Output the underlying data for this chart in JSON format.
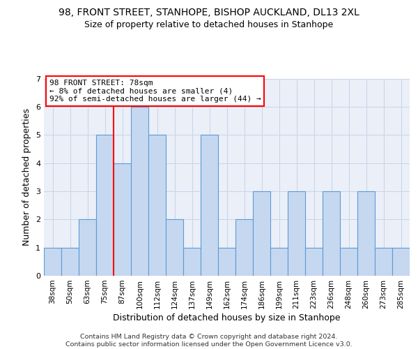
{
  "title_line1": "98, FRONT STREET, STANHOPE, BISHOP AUCKLAND, DL13 2XL",
  "title_line2": "Size of property relative to detached houses in Stanhope",
  "xlabel": "Distribution of detached houses by size in Stanhope",
  "ylabel": "Number of detached properties",
  "categories": [
    "38sqm",
    "50sqm",
    "63sqm",
    "75sqm",
    "87sqm",
    "100sqm",
    "112sqm",
    "124sqm",
    "137sqm",
    "149sqm",
    "162sqm",
    "174sqm",
    "186sqm",
    "199sqm",
    "211sqm",
    "223sqm",
    "236sqm",
    "248sqm",
    "260sqm",
    "273sqm",
    "285sqm"
  ],
  "values": [
    1,
    1,
    2,
    5,
    4,
    6,
    5,
    2,
    1,
    5,
    1,
    2,
    3,
    1,
    3,
    1,
    3,
    1,
    3,
    1,
    1
  ],
  "bar_color": "#c5d8f0",
  "bar_edge_color": "#5b9bd5",
  "vline_x": 3.5,
  "vline_color": "red",
  "annotation_text": "98 FRONT STREET: 78sqm\n← 8% of detached houses are smaller (4)\n92% of semi-detached houses are larger (44) →",
  "ylim": [
    0,
    7
  ],
  "yticks": [
    0,
    1,
    2,
    3,
    4,
    5,
    6,
    7
  ],
  "grid_color": "#c8d4e8",
  "background_color": "#eaeff8",
  "footer_text": "Contains HM Land Registry data © Crown copyright and database right 2024.\nContains public sector information licensed under the Open Government Licence v3.0."
}
